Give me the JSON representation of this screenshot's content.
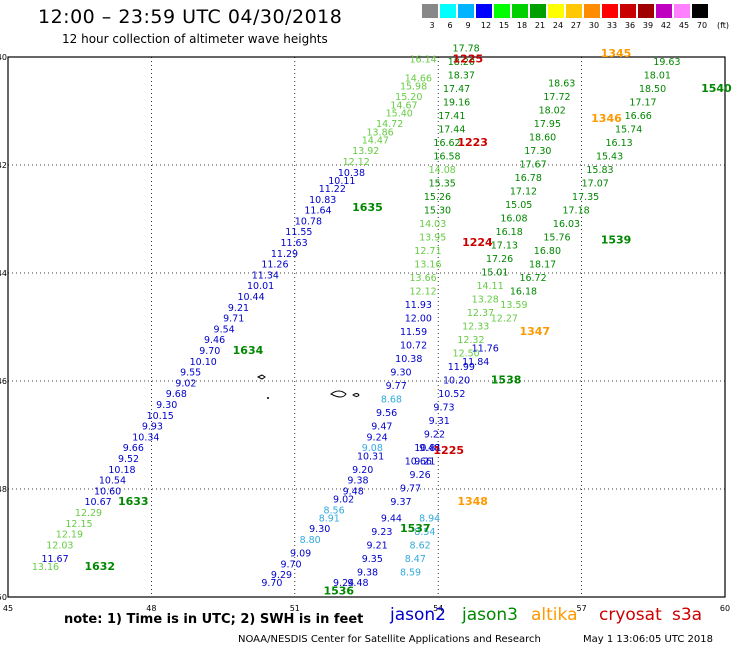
{
  "title": "12:00 – 23:59 UTC 04/30/2018",
  "subtitle": "12 hour collection of altimeter wave heights",
  "scale": {
    "values": [
      "3",
      "6",
      "9",
      "12",
      "15",
      "18",
      "21",
      "24",
      "27",
      "30",
      "33",
      "36",
      "39",
      "42",
      "45",
      "70"
    ],
    "unit": "(ft)",
    "colors": [
      "#888888",
      "#00ffff",
      "#00b4ff",
      "#0000ff",
      "#00ff00",
      "#00d000",
      "#00a000",
      "#ffff00",
      "#ffc800",
      "#ff8c00",
      "#ff0000",
      "#c80000",
      "#a00000",
      "#c000c0",
      "#ff80ff",
      "#000000"
    ]
  },
  "axes": {
    "x_ticks": [
      "45",
      "48",
      "51",
      "54",
      "57",
      "60"
    ],
    "y_ticks": [
      "-40",
      "-42",
      "-44",
      "-46",
      "-48",
      "-50"
    ]
  },
  "note": "note: 1) Time is in UTC; 2) SWH is in feet",
  "legend": [
    {
      "name": "jason2",
      "color": "#0000cc"
    },
    {
      "name": "jason3",
      "color": "#008800"
    },
    {
      "name": "altika",
      "color": "#ff9900"
    },
    {
      "name": "cryosat",
      "color": "#cc0000"
    },
    {
      "name": "s3a",
      "color": "#cc0000"
    }
  ],
  "footer": "NOAA/NESDIS Center for Satellite Applications and Research",
  "footer_time": "May  1 13:06:05 UTC 2018",
  "chart_data": {
    "type": "scatter",
    "xlim": [
      45,
      60
    ],
    "ylim": [
      -50,
      -40
    ],
    "grid": true,
    "labels": [
      [
        "13.16",
        45.5,
        -49.5,
        "#66cc44"
      ],
      [
        "11.67",
        45.7,
        -49.35,
        "#0000cc"
      ],
      [
        "12.03",
        45.8,
        -49.1,
        "#66cc44"
      ],
      [
        "12.19",
        46.0,
        -48.9,
        "#66cc44"
      ],
      [
        "12.15",
        46.2,
        -48.7,
        "#66cc44"
      ],
      [
        "12.29",
        46.4,
        -48.5,
        "#66cc44"
      ],
      [
        "10.67",
        46.6,
        -48.3,
        "#0000cc"
      ],
      [
        "10.60",
        46.8,
        -48.1,
        "#0000cc"
      ],
      [
        "10.54",
        46.9,
        -47.9,
        "#0000cc"
      ],
      [
        "10.18",
        47.1,
        -47.7,
        "#0000cc"
      ],
      [
        "9.52",
        47.3,
        -47.5,
        "#0000cc"
      ],
      [
        "9.66",
        47.4,
        -47.3,
        "#0000cc"
      ],
      [
        "10.34",
        47.6,
        -47.1,
        "#0000cc"
      ],
      [
        "9.93",
        47.8,
        -46.9,
        "#0000cc"
      ],
      [
        "10.15",
        47.9,
        -46.7,
        "#0000cc"
      ],
      [
        "9.30",
        48.1,
        -46.5,
        "#0000cc"
      ],
      [
        "9.68",
        48.3,
        -46.3,
        "#0000cc"
      ],
      [
        "9.02",
        48.5,
        -46.1,
        "#0000cc"
      ],
      [
        "9.55",
        48.6,
        -45.9,
        "#0000cc"
      ],
      [
        "10.10",
        48.8,
        -45.7,
        "#0000cc"
      ],
      [
        "9.70",
        49.0,
        -45.5,
        "#0000cc"
      ],
      [
        "9.46",
        49.1,
        -45.3,
        "#0000cc"
      ],
      [
        "9.54",
        49.3,
        -45.1,
        "#0000cc"
      ],
      [
        "9.71",
        49.5,
        -44.9,
        "#0000cc"
      ],
      [
        "9.21",
        49.6,
        -44.7,
        "#0000cc"
      ],
      [
        "10.44",
        49.8,
        -44.5,
        "#0000cc"
      ],
      [
        "10.01",
        50.0,
        -44.3,
        "#0000cc"
      ],
      [
        "11.34",
        50.1,
        -44.1,
        "#0000cc"
      ],
      [
        "11.26",
        50.3,
        -43.9,
        "#0000cc"
      ],
      [
        "11.29",
        50.5,
        -43.7,
        "#0000cc"
      ],
      [
        "11.63",
        50.7,
        -43.5,
        "#0000cc"
      ],
      [
        "11.55",
        50.8,
        -43.3,
        "#0000cc"
      ],
      [
        "10.78",
        51.0,
        -43.1,
        "#0000cc"
      ],
      [
        "11.64",
        51.2,
        -42.9,
        "#0000cc"
      ],
      [
        "10.83",
        51.3,
        -42.7,
        "#0000cc"
      ],
      [
        "11.22",
        51.5,
        -42.5,
        "#0000cc"
      ],
      [
        "10.11",
        51.7,
        -42.35,
        "#0000cc"
      ],
      [
        "10.38",
        51.9,
        -42.2,
        "#0000cc"
      ],
      [
        "12.12",
        52.0,
        -42.0,
        "#66cc44"
      ],
      [
        "13.92",
        52.2,
        -41.8,
        "#66cc44"
      ],
      [
        "14.47",
        52.4,
        -41.6,
        "#66cc44"
      ],
      [
        "13.86",
        52.5,
        -41.45,
        "#66cc44"
      ],
      [
        "14.72",
        52.7,
        -41.3,
        "#66cc44"
      ],
      [
        "15.40",
        52.9,
        -41.1,
        "#66cc44"
      ],
      [
        "14.67",
        53.0,
        -40.95,
        "#66cc44"
      ],
      [
        "15.20",
        53.1,
        -40.8,
        "#66cc44"
      ],
      [
        "15.98",
        53.2,
        -40.6,
        "#66cc44"
      ],
      [
        "14.66",
        53.3,
        -40.45,
        "#66cc44"
      ],
      [
        "16.14",
        53.4,
        -40.1,
        "#66cc44"
      ],
      [
        "9.70",
        50.3,
        -49.8,
        "#0000cc"
      ],
      [
        "9.29",
        50.5,
        -49.65,
        "#0000cc"
      ],
      [
        "9.70",
        50.7,
        -49.45,
        "#0000cc"
      ],
      [
        "9.09",
        50.9,
        -49.25,
        "#0000cc"
      ],
      [
        "8.80",
        51.1,
        -49.0,
        "#33aadd"
      ],
      [
        "9.30",
        51.3,
        -48.8,
        "#0000cc"
      ],
      [
        "8.91",
        51.5,
        -48.6,
        "#33aadd"
      ],
      [
        "8.56",
        51.6,
        -48.45,
        "#33aadd"
      ],
      [
        "9.02",
        51.8,
        -48.25,
        "#0000cc"
      ],
      [
        "9.48",
        52.0,
        -48.1,
        "#0000cc"
      ],
      [
        "9.38",
        52.1,
        -47.9,
        "#0000cc"
      ],
      [
        "9.20",
        52.2,
        -47.7,
        "#0000cc"
      ],
      [
        "10.31",
        52.3,
        -47.45,
        "#0000cc"
      ],
      [
        "9.08",
        52.4,
        -47.3,
        "#33aadd"
      ],
      [
        "9.24",
        52.5,
        -47.1,
        "#0000cc"
      ],
      [
        "9.47",
        52.6,
        -46.9,
        "#0000cc"
      ],
      [
        "9.56",
        52.7,
        -46.65,
        "#0000cc"
      ],
      [
        "8.68",
        52.8,
        -46.4,
        "#33aadd"
      ],
      [
        "9.77",
        52.9,
        -46.15,
        "#0000cc"
      ],
      [
        "9.30",
        53.0,
        -45.9,
        "#0000cc"
      ],
      [
        "10.38",
        53.1,
        -45.65,
        "#0000cc"
      ],
      [
        "10.72",
        53.2,
        -45.4,
        "#0000cc"
      ],
      [
        "11.59",
        53.2,
        -45.15,
        "#0000cc"
      ],
      [
        "12.00",
        53.3,
        -44.9,
        "#0000cc"
      ],
      [
        "11.93",
        53.3,
        -44.65,
        "#0000cc"
      ],
      [
        "12.12",
        53.4,
        -44.4,
        "#66cc44"
      ],
      [
        "13.66",
        53.4,
        -44.15,
        "#66cc44"
      ],
      [
        "13.16",
        53.5,
        -43.9,
        "#66cc44"
      ],
      [
        "12.71",
        53.5,
        -43.65,
        "#66cc44"
      ],
      [
        "13.95",
        53.6,
        -43.4,
        "#66cc44"
      ],
      [
        "14.03",
        53.6,
        -43.15,
        "#66cc44"
      ],
      [
        "15.30",
        53.7,
        -42.9,
        "#008800"
      ],
      [
        "15.26",
        53.7,
        -42.65,
        "#008800"
      ],
      [
        "15.35",
        53.8,
        -42.4,
        "#008800"
      ],
      [
        "14.08",
        53.8,
        -42.15,
        "#66cc44"
      ],
      [
        "16.58",
        53.9,
        -41.9,
        "#008800"
      ],
      [
        "16.62",
        53.9,
        -41.65,
        "#008800"
      ],
      [
        "17.44",
        54.0,
        -41.4,
        "#008800"
      ],
      [
        "17.41",
        54.0,
        -41.15,
        "#008800"
      ],
      [
        "19.16",
        54.1,
        -40.9,
        "#008800"
      ],
      [
        "17.47",
        54.1,
        -40.65,
        "#008800"
      ],
      [
        "18.37",
        54.2,
        -40.4,
        "#008800"
      ],
      [
        "18.20",
        54.2,
        -40.15,
        "#008800"
      ],
      [
        "17.78",
        54.3,
        -39.9,
        "#008800"
      ],
      [
        "9.24",
        51.8,
        -49.8,
        "#0000cc"
      ],
      [
        "9.48",
        52.1,
        -49.8,
        "#0000cc"
      ],
      [
        "9.38",
        52.3,
        -49.6,
        "#0000cc"
      ],
      [
        "9.35",
        52.4,
        -49.35,
        "#0000cc"
      ],
      [
        "9.21",
        52.5,
        -49.1,
        "#0000cc"
      ],
      [
        "9.23",
        52.6,
        -48.85,
        "#0000cc"
      ],
      [
        "9.44",
        52.8,
        -48.6,
        "#0000cc"
      ],
      [
        "9.37",
        53.0,
        -48.3,
        "#0000cc"
      ],
      [
        "9.77",
        53.2,
        -48.05,
        "#0000cc"
      ],
      [
        "9.26",
        53.4,
        -47.8,
        "#0000cc"
      ],
      [
        "9.21",
        53.5,
        -47.55,
        "#0000cc"
      ],
      [
        "9.48",
        53.6,
        -47.3,
        "#0000cc"
      ],
      [
        "9.22",
        53.7,
        -47.05,
        "#0000cc"
      ],
      [
        "9.31",
        53.8,
        -46.8,
        "#0000cc"
      ],
      [
        "9.73",
        53.9,
        -46.55,
        "#0000cc"
      ],
      [
        "10.52",
        54.0,
        -46.3,
        "#0000cc"
      ],
      [
        "10.20",
        54.1,
        -46.05,
        "#0000cc"
      ],
      [
        "11.99",
        54.2,
        -45.8,
        "#0000cc"
      ],
      [
        "12.50",
        54.3,
        -45.55,
        "#66cc44"
      ],
      [
        "12.32",
        54.4,
        -45.3,
        "#66cc44"
      ],
      [
        "12.33",
        54.5,
        -45.05,
        "#66cc44"
      ],
      [
        "12.37",
        54.6,
        -44.8,
        "#66cc44"
      ],
      [
        "13.28",
        54.7,
        -44.55,
        "#66cc44"
      ],
      [
        "14.11",
        54.8,
        -44.3,
        "#66cc44"
      ],
      [
        "15.01",
        54.9,
        -44.05,
        "#008800"
      ],
      [
        "17.26",
        55.0,
        -43.8,
        "#008800"
      ],
      [
        "17.13",
        55.1,
        -43.55,
        "#008800"
      ],
      [
        "16.18",
        55.2,
        -43.3,
        "#008800"
      ],
      [
        "16.08",
        55.3,
        -43.05,
        "#008800"
      ],
      [
        "15.05",
        55.4,
        -42.8,
        "#008800"
      ],
      [
        "17.12",
        55.5,
        -42.55,
        "#008800"
      ],
      [
        "16.78",
        55.6,
        -42.3,
        "#008800"
      ],
      [
        "17.67",
        55.7,
        -42.05,
        "#008800"
      ],
      [
        "17.30",
        55.8,
        -41.8,
        "#008800"
      ],
      [
        "18.60",
        55.9,
        -41.55,
        "#008800"
      ],
      [
        "17.95",
        56.0,
        -41.3,
        "#008800"
      ],
      [
        "18.02",
        56.1,
        -41.05,
        "#008800"
      ],
      [
        "17.72",
        56.2,
        -40.8,
        "#008800"
      ],
      [
        "18.63",
        56.3,
        -40.55,
        "#008800"
      ],
      [
        "8.59",
        53.2,
        -49.6,
        "#33aadd"
      ],
      [
        "8.47",
        53.3,
        -49.35,
        "#33aadd"
      ],
      [
        "8.62",
        53.4,
        -49.1,
        "#33aadd"
      ],
      [
        "8.54",
        53.5,
        -48.85,
        "#33aadd"
      ],
      [
        "8.94",
        53.6,
        -48.6,
        "#33aadd"
      ],
      [
        "10.66",
        53.3,
        -47.55,
        "#0000cc"
      ],
      [
        "10.81",
        53.5,
        -47.3,
        "#0000cc"
      ],
      [
        "11.84",
        54.5,
        -45.7,
        "#0000cc"
      ],
      [
        "11.76",
        54.7,
        -45.45,
        "#0000cc"
      ],
      [
        "12.27",
        55.1,
        -44.9,
        "#66cc44"
      ],
      [
        "13.59",
        55.3,
        -44.65,
        "#66cc44"
      ],
      [
        "16.18",
        55.5,
        -44.4,
        "#008800"
      ],
      [
        "16.72",
        55.7,
        -44.15,
        "#008800"
      ],
      [
        "18.17",
        55.9,
        -43.9,
        "#008800"
      ],
      [
        "16.80",
        56.0,
        -43.65,
        "#008800"
      ],
      [
        "15.76",
        56.2,
        -43.4,
        "#008800"
      ],
      [
        "16.03",
        56.4,
        -43.15,
        "#008800"
      ],
      [
        "17.18",
        56.6,
        -42.9,
        "#008800"
      ],
      [
        "17.35",
        56.8,
        -42.65,
        "#008800"
      ],
      [
        "17.07",
        57.0,
        -42.4,
        "#008800"
      ],
      [
        "15.83",
        57.1,
        -42.15,
        "#008800"
      ],
      [
        "15.43",
        57.3,
        -41.9,
        "#008800"
      ],
      [
        "16.13",
        57.5,
        -41.65,
        "#008800"
      ],
      [
        "15.74",
        57.7,
        -41.4,
        "#008800"
      ],
      [
        "16.66",
        57.9,
        -41.15,
        "#008800"
      ],
      [
        "17.17",
        58.0,
        -40.9,
        "#008800"
      ],
      [
        "18.50",
        58.2,
        -40.65,
        "#008800"
      ],
      [
        "18.01",
        58.3,
        -40.4,
        "#008800"
      ],
      [
        "19.63",
        58.5,
        -40.15,
        "#008800"
      ]
    ],
    "times": [
      [
        "1632",
        46.6,
        -49.5,
        "#008800"
      ],
      [
        "1633",
        47.3,
        -48.3,
        "#008800"
      ],
      [
        "1634",
        49.7,
        -45.5,
        "#008800"
      ],
      [
        "1635",
        52.2,
        -42.85,
        "#008800"
      ],
      [
        "1536",
        51.6,
        -49.95,
        "#008800"
      ],
      [
        "1537",
        53.2,
        -48.8,
        "#008800"
      ],
      [
        "1538",
        55.1,
        -46.05,
        "#008800"
      ],
      [
        "1539",
        57.4,
        -43.45,
        "#008800"
      ],
      [
        "1540",
        59.5,
        -40.65,
        "#008800"
      ],
      [
        "1223",
        54.4,
        -41.65,
        "#cc0000"
      ],
      [
        "1224",
        54.5,
        -43.5,
        "#cc0000"
      ],
      [
        "1225",
        53.9,
        -47.35,
        "#cc0000"
      ],
      [
        "1225",
        54.3,
        -40.1,
        "#cc0000"
      ],
      [
        "1345",
        57.4,
        -40.0,
        "#ff9900"
      ],
      [
        "1346",
        57.2,
        -41.2,
        "#ff9900"
      ],
      [
        "1347",
        55.7,
        -45.15,
        "#ff9900"
      ],
      [
        "1348",
        54.4,
        -48.3,
        "#ff9900"
      ]
    ]
  }
}
